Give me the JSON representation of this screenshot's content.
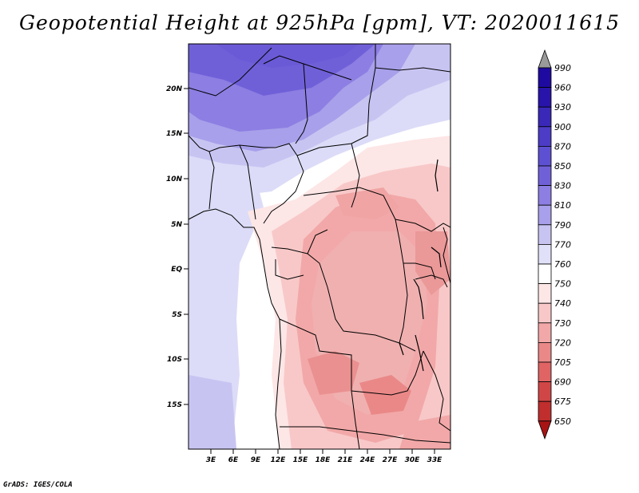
{
  "title": "Geopotential Height at 925hPa [gpm], VT: 2020011615",
  "footer": "GrADS: IGES/COLA",
  "map": {
    "lat_labels": [
      "20N",
      "15N",
      "10N",
      "5N",
      "EQ",
      "5S",
      "10S",
      "15S"
    ],
    "lon_labels": [
      "3E",
      "6E",
      "9E",
      "12E",
      "15E",
      "18E",
      "21E",
      "24E",
      "27E",
      "30E",
      "33E"
    ]
  },
  "colorbar": {
    "labels": [
      "990",
      "960",
      "930",
      "900",
      "870",
      "850",
      "830",
      "810",
      "790",
      "770",
      "760",
      "750",
      "740",
      "730",
      "720",
      "705",
      "690",
      "675",
      "650"
    ],
    "colors": [
      "#1e0aa0",
      "#2814aa",
      "#3a28b8",
      "#4c3cc6",
      "#5e50d2",
      "#7060d8",
      "#8c7ee2",
      "#a8a0ea",
      "#c8c4f2",
      "#e0e0f8",
      "#ffffff",
      "#fde6e6",
      "#f8c8c8",
      "#f2a8a8",
      "#ea8888",
      "#e06464",
      "#d04646",
      "#c02e2e",
      "#a81414"
    ]
  }
}
